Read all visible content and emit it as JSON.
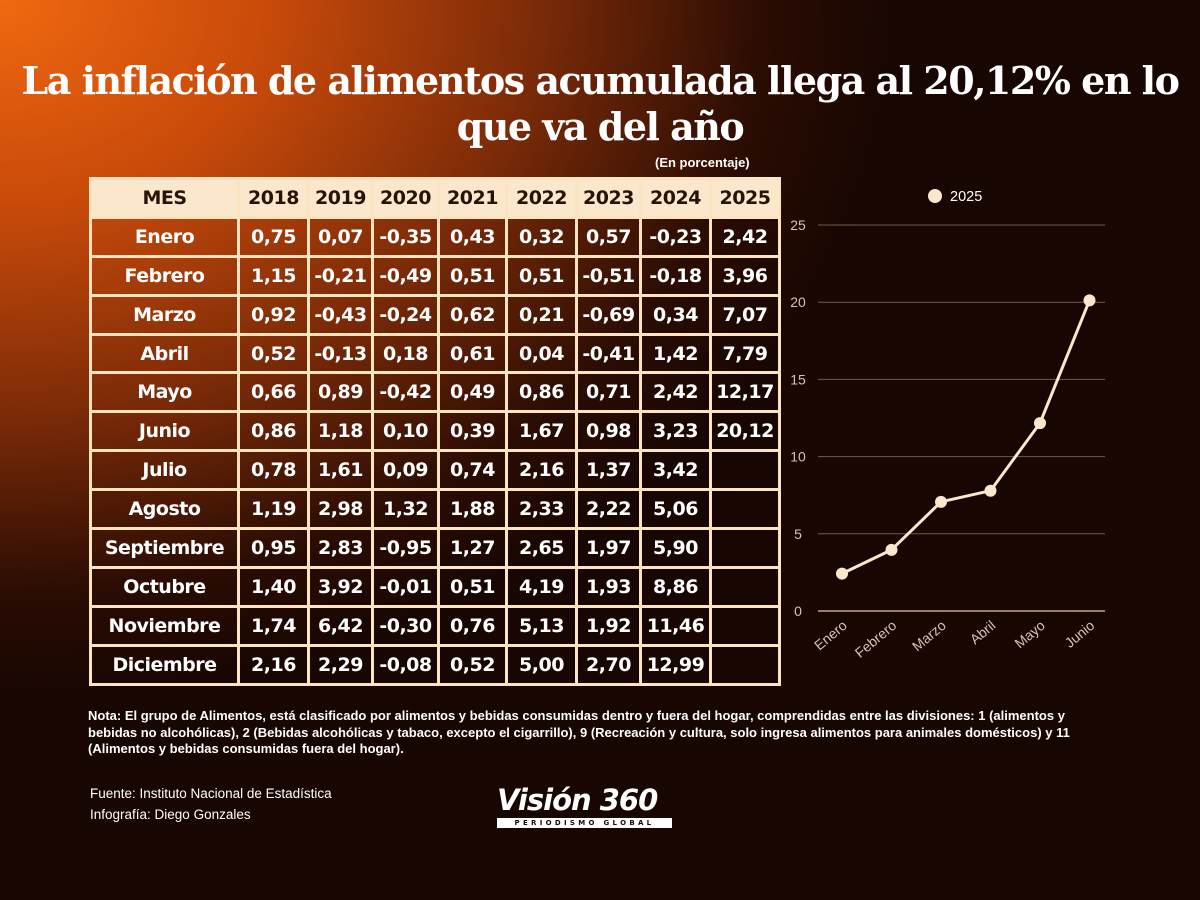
{
  "title": "La inflación de alimentos acumulada llega al 20,12% en lo que va del año",
  "unit_note": "(En porcentaje)",
  "table": {
    "header": [
      "MES",
      "2018",
      "2019",
      "2020",
      "2021",
      "2022",
      "2023",
      "2024",
      "2025"
    ],
    "rows": [
      [
        "Enero",
        "0,75",
        "0,07",
        "-0,35",
        "0,43",
        "0,32",
        "0,57",
        "-0,23",
        "2,42"
      ],
      [
        "Febrero",
        "1,15",
        "-0,21",
        "-0,49",
        "0,51",
        "0,51",
        "-0,51",
        "-0,18",
        "3,96"
      ],
      [
        "Marzo",
        "0,92",
        "-0,43",
        "-0,24",
        "0,62",
        "0,21",
        "-0,69",
        "0,34",
        "7,07"
      ],
      [
        "Abril",
        "0,52",
        "-0,13",
        "0,18",
        "0,61",
        "0,04",
        "-0,41",
        "1,42",
        "7,79"
      ],
      [
        "Mayo",
        "0,66",
        "0,89",
        "-0,42",
        "0,49",
        "0,86",
        "0,71",
        "2,42",
        "12,17"
      ],
      [
        "Junio",
        "0,86",
        "1,18",
        "0,10",
        "0,39",
        "1,67",
        "0,98",
        "3,23",
        "20,12"
      ],
      [
        "Julio",
        "0,78",
        "1,61",
        "0,09",
        "0,74",
        "2,16",
        "1,37",
        "3,42",
        ""
      ],
      [
        "Agosto",
        "1,19",
        "2,98",
        "1,32",
        "1,88",
        "2,33",
        "2,22",
        "5,06",
        ""
      ],
      [
        "Septiembre",
        "0,95",
        "2,83",
        "-0,95",
        "1,27",
        "2,65",
        "1,97",
        "5,90",
        ""
      ],
      [
        "Octubre",
        "1,40",
        "3,92",
        "-0,01",
        "0,51",
        "4,19",
        "1,93",
        "8,86",
        ""
      ],
      [
        "Noviembre",
        "1,74",
        "6,42",
        "-0,30",
        "0,76",
        "5,13",
        "1,92",
        "11,46",
        ""
      ],
      [
        "Diciembre",
        "2,16",
        "2,29",
        "-0,08",
        "0,52",
        "5,00",
        "2,70",
        "12,99",
        ""
      ]
    ]
  },
  "chart_data": {
    "type": "line",
    "categories": [
      "Enero",
      "Febrero",
      "Marzo",
      "Abril",
      "Mayo",
      "Junio"
    ],
    "series": [
      {
        "name": "2025",
        "values": [
          2.42,
          3.96,
          7.07,
          7.79,
          12.17,
          20.12
        ],
        "color": "#fbe7cc"
      }
    ],
    "ylim": [
      0,
      25
    ],
    "yticks": [
      0,
      5,
      10,
      15,
      20,
      25
    ],
    "grid": true,
    "legend": "top"
  },
  "note": "Nota: El grupo de Alimentos, está clasificado por alimentos y bebidas consumidas dentro y fuera del hogar, comprendidas entre las divisiones: 1 (alimentos y bebidas no alcohólicas), 2 (Bebidas alcohólicas y tabaco, excepto el cigarrillo), 9 (Recreación y cultura, solo ingresa alimentos para animales domésticos) y 11 (Alimentos y bebidas consumidas fuera del hogar).",
  "source": "Fuente: Instituto Nacional de Estadística",
  "credit": "Infografía: Diego Gonzales",
  "logo": {
    "name": "Visión 360",
    "tagline": "PERIODISMO GLOBAL"
  }
}
